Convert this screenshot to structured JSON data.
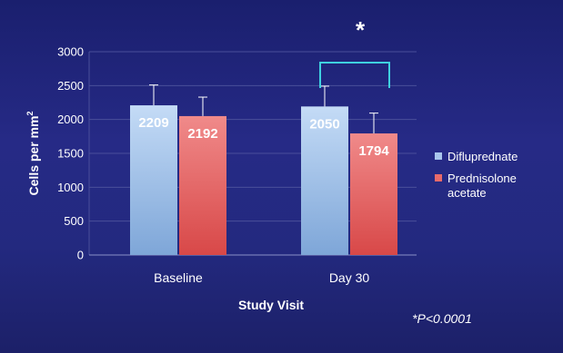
{
  "chart_data": {
    "type": "bar",
    "categories": [
      "Baseline",
      "Day 30"
    ],
    "series": [
      {
        "name": "Difluprednate",
        "values": [
          2209,
          2192
        ],
        "errors": [
          300,
          300
        ],
        "color": "#a9c6ec"
      },
      {
        "name": "Prednisolone acetate",
        "values": [
          2050,
          1794
        ],
        "errors": [
          280,
          300
        ],
        "color": "#e86a6a"
      }
    ],
    "data_labels": [
      [
        "2209",
        "2192"
      ],
      [
        "2050",
        "1794"
      ]
    ],
    "title": "",
    "xlabel": "Study Visit",
    "ylabel": "Cells per mm",
    "ylabel_superscript": "2",
    "ylim": [
      0,
      3000
    ],
    "yticks": [
      "0",
      "500",
      "1000",
      "1500",
      "2000",
      "2500",
      "3000"
    ],
    "grid": true,
    "legend_position": "right",
    "legend": [
      {
        "name_lines": [
          "Difluprednate"
        ],
        "color": "#a9c6ec"
      },
      {
        "name_lines": [
          "Prednisolone",
          "acetate"
        ],
        "color": "#e86a6a"
      }
    ],
    "significance_marker": "*",
    "footnote": "*P<0.0001"
  },
  "colors": {
    "background": "#23297f",
    "grid": "#4a4f9a",
    "text": "#ffffff",
    "bracket": "#3fd0e0",
    "error_bar": "#ffffff"
  }
}
